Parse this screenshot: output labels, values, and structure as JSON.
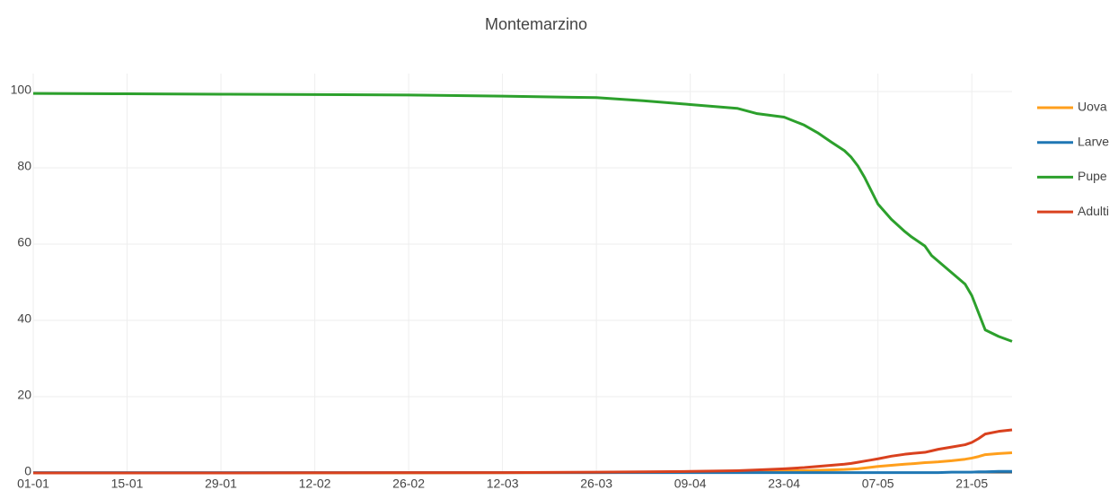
{
  "chart_data": {
    "type": "line",
    "title": "Montemarzino",
    "x": [
      0,
      14,
      28,
      42,
      56,
      70,
      84,
      91,
      98,
      105,
      108,
      112,
      115,
      117,
      119,
      121,
      122,
      123,
      124,
      125,
      126,
      128,
      130,
      131,
      133,
      134,
      135,
      137,
      139,
      140,
      141,
      142,
      144,
      146
    ],
    "xlim": [
      0,
      146
    ],
    "xticks": [
      {
        "value": 0,
        "label": "01-01"
      },
      {
        "value": 14,
        "label": "15-01"
      },
      {
        "value": 28,
        "label": "29-01"
      },
      {
        "value": 42,
        "label": "12-02"
      },
      {
        "value": 56,
        "label": "26-02"
      },
      {
        "value": 70,
        "label": "12-03"
      },
      {
        "value": 84,
        "label": "26-03"
      },
      {
        "value": 98,
        "label": "09-04"
      },
      {
        "value": 112,
        "label": "23-04"
      },
      {
        "value": 126,
        "label": "07-05"
      },
      {
        "value": 140,
        "label": "21-05"
      }
    ],
    "ylim": [
      0,
      100
    ],
    "yticks": [
      0,
      20,
      40,
      60,
      80,
      100
    ],
    "grid": true,
    "legend": "right",
    "series": [
      {
        "name": "Uova",
        "color": "#ff9f1c",
        "values": [
          0,
          0,
          0,
          0,
          0,
          0.05,
          0.1,
          0.15,
          0.2,
          0.3,
          0.4,
          0.5,
          0.6,
          0.7,
          0.8,
          0.9,
          1.0,
          1.1,
          1.3,
          1.5,
          1.7,
          2.0,
          2.3,
          2.4,
          2.7,
          2.8,
          2.9,
          3.2,
          3.6,
          3.9,
          4.3,
          4.8,
          5.1,
          5.3
        ]
      },
      {
        "name": "Larve",
        "color": "#1f77b4",
        "values": [
          0.1,
          0.1,
          0.1,
          0.1,
          0.1,
          0.1,
          0.1,
          0.1,
          0.1,
          0.1,
          0.1,
          0.1,
          0.1,
          0.1,
          0.1,
          0.1,
          0.1,
          0.1,
          0.1,
          0.1,
          0.1,
          0.1,
          0.1,
          0.1,
          0.1,
          0.1,
          0.1,
          0.2,
          0.2,
          0.2,
          0.3,
          0.3,
          0.4,
          0.4
        ]
      },
      {
        "name": "Pupe",
        "color": "#2ca02c",
        "values": [
          99.5,
          99.4,
          99.3,
          99.2,
          99.1,
          98.8,
          98.4,
          97.6,
          96.6,
          95.6,
          94.2,
          93.3,
          91.2,
          89.2,
          86.8,
          84.5,
          82.8,
          80.5,
          77.5,
          74,
          70.5,
          66.5,
          63.3,
          61.9,
          59.5,
          57,
          55.5,
          52.5,
          49.5,
          46.5,
          42,
          37.5,
          35.8,
          34.5
        ]
      },
      {
        "name": "Adulti",
        "color": "#d9411e",
        "values": [
          0,
          0,
          0,
          0.05,
          0.1,
          0.1,
          0.2,
          0.3,
          0.4,
          0.6,
          0.8,
          1.1,
          1.4,
          1.7,
          2.0,
          2.3,
          2.5,
          2.8,
          3.1,
          3.4,
          3.7,
          4.4,
          4.9,
          5.1,
          5.4,
          5.8,
          6.2,
          6.8,
          7.4,
          8.0,
          9.0,
          10.2,
          10.9,
          11.3
        ]
      }
    ]
  }
}
